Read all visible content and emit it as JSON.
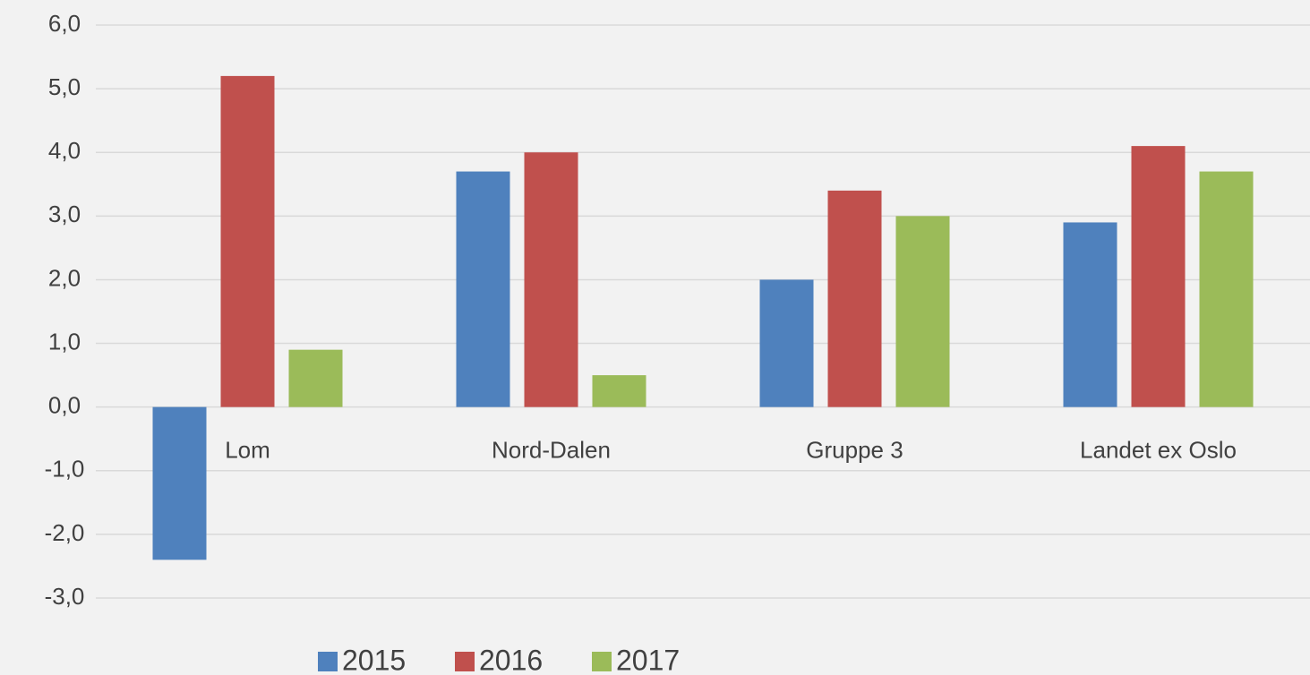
{
  "chart_data": {
    "type": "bar",
    "categories": [
      "Lom",
      "Nord-Dalen",
      "Gruppe 3",
      "Landet ex Oslo"
    ],
    "series": [
      {
        "name": "2015",
        "color": "#4f81bd",
        "values": [
          -2.4,
          3.7,
          2.0,
          2.9
        ]
      },
      {
        "name": "2016",
        "color": "#c0504d",
        "values": [
          5.2,
          4.0,
          3.4,
          4.1
        ]
      },
      {
        "name": "2017",
        "color": "#9bbb59",
        "values": [
          0.9,
          0.5,
          3.0,
          3.7
        ]
      }
    ],
    "ylim": [
      -3,
      6
    ],
    "yticks": [
      {
        "value": -3,
        "label": "-3,0"
      },
      {
        "value": -2,
        "label": "-2,0"
      },
      {
        "value": -1,
        "label": "-1,0"
      },
      {
        "value": 0,
        "label": "0,0"
      },
      {
        "value": 1,
        "label": "1,0"
      },
      {
        "value": 2,
        "label": "2,0"
      },
      {
        "value": 3,
        "label": "3,0"
      },
      {
        "value": 4,
        "label": "4,0"
      },
      {
        "value": 5,
        "label": "5,0"
      },
      {
        "value": 6,
        "label": "6,0"
      }
    ],
    "grid": true,
    "legend": "bottom"
  }
}
